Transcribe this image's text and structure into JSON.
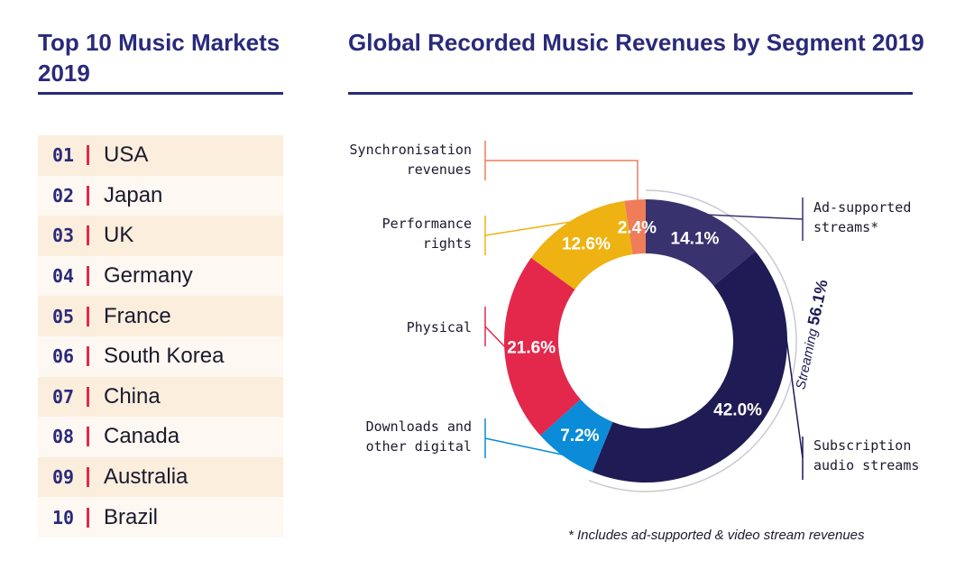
{
  "left_title": "Top 10 Music Markets 2019",
  "right_title": "Global Recorded Music Revenues by Segment 2019",
  "markets": [
    {
      "rank": "01",
      "name": "USA"
    },
    {
      "rank": "02",
      "name": "Japan"
    },
    {
      "rank": "03",
      "name": "UK"
    },
    {
      "rank": "04",
      "name": "Germany"
    },
    {
      "rank": "05",
      "name": "France"
    },
    {
      "rank": "06",
      "name": "South Korea"
    },
    {
      "rank": "07",
      "name": "China"
    },
    {
      "rank": "08",
      "name": "Canada"
    },
    {
      "rank": "09",
      "name": "Australia"
    },
    {
      "rank": "10",
      "name": "Brazil"
    }
  ],
  "chart_data": {
    "type": "pie",
    "title": "Global Recorded Music Revenues by Segment 2019",
    "segments": [
      {
        "name": "Ad-supported streams*",
        "label_lines": [
          "Ad-supported",
          "streams*"
        ],
        "value": 14.1,
        "label": "14.1%",
        "color": "#38326f"
      },
      {
        "name": "Subscription audio streams",
        "label_lines": [
          "Subscription",
          "audio streams"
        ],
        "value": 42.0,
        "label": "42.0%",
        "color": "#1f1b55"
      },
      {
        "name": "Downloads and other digital",
        "label_lines": [
          "Downloads and",
          "other digital"
        ],
        "value": 7.2,
        "label": "7.2%",
        "color": "#0b8bd8"
      },
      {
        "name": "Physical",
        "label_lines": [
          "Physical"
        ],
        "value": 21.6,
        "label": "21.6%",
        "color": "#e3284c"
      },
      {
        "name": "Performance rights",
        "label_lines": [
          "Performance",
          "rights"
        ],
        "value": 12.6,
        "label": "12.6%",
        "color": "#eeb312"
      },
      {
        "name": "Synchronisation revenues",
        "label_lines": [
          "Synchronisation",
          "revenues"
        ],
        "value": 2.4,
        "label": "2.4%",
        "color": "#ef7d5a"
      }
    ],
    "streaming_group": {
      "label": "Streaming",
      "value": "56.1%"
    }
  },
  "footnote": "* Includes ad-supported & video stream revenues"
}
